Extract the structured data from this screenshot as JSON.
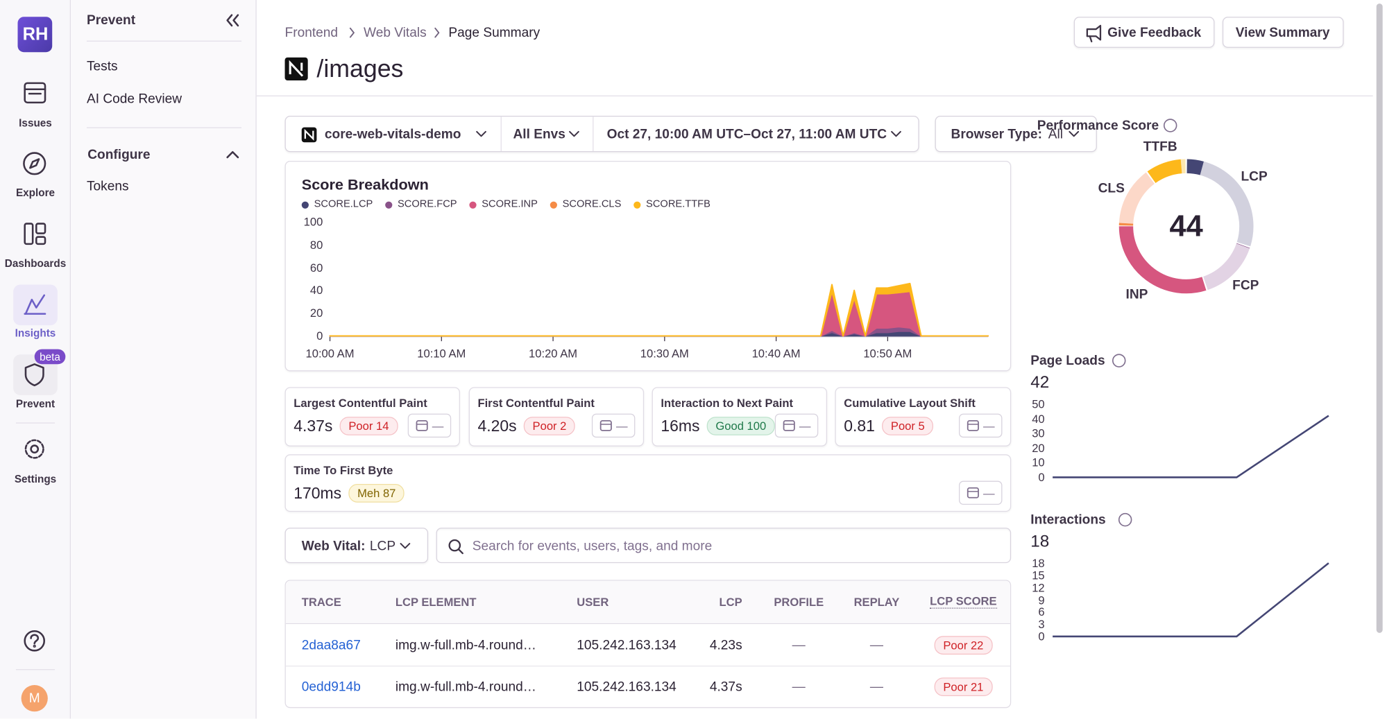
{
  "sidebar": {
    "avatar": "RH",
    "nav": [
      "Issues",
      "Explore",
      "Dashboards",
      "Insights",
      "Prevent",
      "Settings"
    ],
    "badge": "beta",
    "user": "M"
  },
  "subnav": {
    "title": "Prevent",
    "items": [
      "Tests",
      "AI Code Review"
    ],
    "section": "Configure",
    "section_items": [
      "Tokens"
    ]
  },
  "header": {
    "breadcrumbs": [
      "Frontend",
      "Web Vitals",
      "Page Summary"
    ],
    "title": "/images",
    "actions": [
      "Give Feedback",
      "View Summary"
    ]
  },
  "filters": {
    "project": "core-web-vitals-demo",
    "environment": "All Envs",
    "date_range": "Oct 27, 10:00 AM UTC–Oct 27, 11:00 AM UTC",
    "browser_label": "Browser Type:",
    "browser_value": "All"
  },
  "score_breakdown": {
    "type": "area",
    "stacked": true,
    "title": "Score Breakdown",
    "x": [
      "10:00 AM",
      "10:44 AM",
      "10:45 AM",
      "10:46 AM",
      "10:47 AM",
      "10:48 AM",
      "10:49 AM",
      "10:50 AM",
      "10:51 AM",
      "10:52 AM",
      "10:53 AM",
      "10:59 AM"
    ],
    "xlim": [
      "10:00 AM",
      "10:59 AM"
    ],
    "xticks": [
      "10:00 AM",
      "10:10 AM",
      "10:20 AM",
      "10:30 AM",
      "10:40 AM",
      "10:50 AM"
    ],
    "ylim": [
      0,
      100
    ],
    "yticks": [
      0,
      20,
      40,
      60,
      80,
      100
    ],
    "series": [
      {
        "name": "SCORE.LCP",
        "color": "#444674",
        "values": [
          0,
          0,
          3,
          0,
          2,
          0,
          3,
          3,
          4,
          4,
          0,
          0
        ]
      },
      {
        "name": "SCORE.FCP",
        "color": "#895289",
        "values": [
          0,
          0,
          2,
          0,
          1,
          0,
          4,
          4,
          4,
          3,
          0,
          0
        ]
      },
      {
        "name": "SCORE.INP",
        "color": "#d6567f",
        "values": [
          0,
          0,
          34,
          0,
          30,
          0,
          30,
          30,
          30,
          32,
          0,
          0
        ]
      },
      {
        "name": "SCORE.CLS",
        "color": "#f58c46",
        "values": [
          0,
          0,
          0,
          0,
          0,
          0,
          0,
          0,
          0,
          0,
          0,
          0
        ]
      },
      {
        "name": "SCORE.TTFB",
        "color": "#fdb81b",
        "values": [
          0,
          0,
          6,
          0,
          7,
          0,
          5,
          5,
          6,
          7,
          0,
          0
        ]
      }
    ]
  },
  "performance_score": {
    "type": "donut",
    "title": "Performance Score",
    "score": 44,
    "segments": [
      {
        "name": "LCP",
        "color": "#444674",
        "track": "#d2d1de",
        "value": 4.2,
        "weight": 30
      },
      {
        "name": "FCP",
        "color": "#895289",
        "track": "#e2d3e4",
        "value": 0.3,
        "weight": 15
      },
      {
        "name": "INP",
        "color": "#d6567f",
        "track": "#f1c6d3",
        "value": 30,
        "weight": 30
      },
      {
        "name": "CLS",
        "color": "#f58c46",
        "track": "#fcd8c8",
        "value": 0.8,
        "weight": 15
      },
      {
        "name": "TTFB",
        "color": "#fdb81b",
        "track": "#fde7b0",
        "value": 8.7,
        "weight": 10
      }
    ]
  },
  "page_loads": {
    "type": "line",
    "title": "Page Loads",
    "total": 42,
    "color": "#444674",
    "values": [
      0,
      0,
      0,
      42
    ],
    "ylim": [
      0,
      50
    ],
    "yticks": [
      0,
      10,
      20,
      30,
      40,
      50
    ]
  },
  "interactions": {
    "type": "line",
    "title": "Interactions",
    "total": 18,
    "color": "#444674",
    "values": [
      0,
      0,
      0,
      18
    ],
    "ylim": [
      0,
      18
    ],
    "yticks": [
      0,
      3,
      6,
      9,
      12,
      15,
      18
    ]
  },
  "metrics": [
    {
      "name": "Largest Contentful Paint",
      "value": "4.37s",
      "rating": "Poor 14",
      "sample": "—"
    },
    {
      "name": "First Contentful Paint",
      "value": "4.20s",
      "rating": "Poor 2",
      "sample": "—"
    },
    {
      "name": "Interaction to Next Paint",
      "value": "16ms",
      "rating": "Good 100",
      "sample": "—"
    },
    {
      "name": "Cumulative Layout Shift",
      "value": "0.81",
      "rating": "Poor 5",
      "sample": "—"
    },
    {
      "name": "Time To First Byte",
      "value": "170ms",
      "rating": "Meh 87",
      "sample": "—"
    }
  ],
  "search": {
    "label": "Web Vital:",
    "value": "LCP",
    "placeholder": "Search for events, users, tags, and more"
  },
  "table": {
    "columns": [
      "TRACE",
      "LCP ELEMENT",
      "USER",
      "LCP",
      "PROFILE",
      "REPLAY",
      "LCP SCORE"
    ],
    "rows": [
      [
        "2daa8a67",
        "img.w-full.mb-4.round…",
        "105.242.163.134",
        "4.23s",
        "—",
        "—",
        "Poor 22"
      ],
      [
        "0edd914b",
        "img.w-full.mb-4.round…",
        "105.242.163.134",
        "4.37s",
        "—",
        "—",
        "Poor 21"
      ]
    ]
  }
}
